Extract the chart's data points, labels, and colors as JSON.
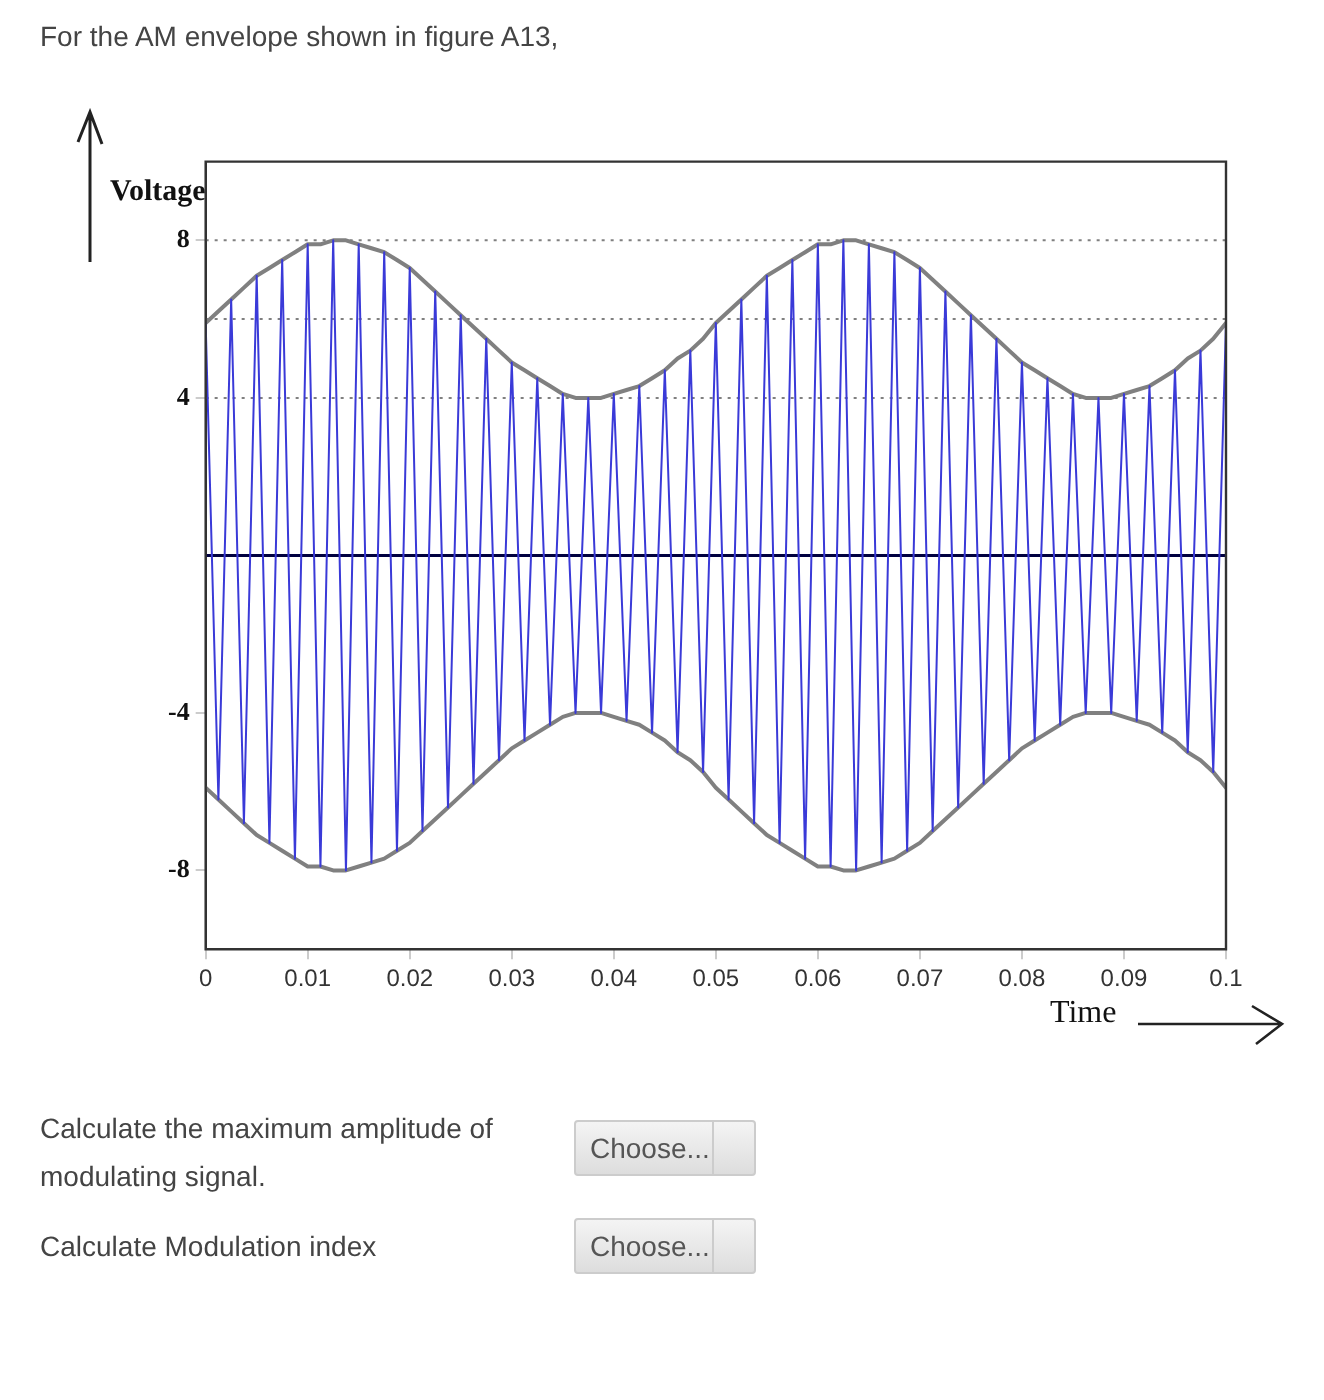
{
  "chart_data": {
    "type": "line",
    "xlabel": "Time",
    "ylabel": "Voltage",
    "marker": "none",
    "line_style": "solid",
    "annotations": [
      "For the AM envelope shown in figure A13,",
      "Calculate the maximum amplitude of modulating signal.",
      "Calculate Modulation index",
      "Choose...",
      "Choose..."
    ],
    "xlim": [
      0,
      0.1
    ],
    "xticks": [
      0,
      0.01,
      0.02,
      0.03,
      0.04,
      0.05,
      0.06,
      0.07,
      0.08,
      0.09,
      0.1
    ],
    "ylim": [
      -10,
      10
    ],
    "yticks": [
      8,
      4,
      -4,
      -8
    ],
    "ref_lines": [
      {
        "axis": "y",
        "value": 8,
        "color": "#808080",
        "line_style": "dotted"
      },
      {
        "axis": "y",
        "value": 6,
        "color": "#808080",
        "line_style": "dotted"
      },
      {
        "axis": "y",
        "value": 4,
        "color": "#808080",
        "line_style": "dotted"
      },
      {
        "axis": "y",
        "value": 0,
        "color": "#000040",
        "line_style": "solid"
      }
    ],
    "x": [
      0,
      0.00125,
      0.0025,
      0.00375,
      0.005,
      0.00625,
      0.0075,
      0.00875,
      0.01,
      0.01125,
      0.0125,
      0.01375,
      0.015,
      0.01625,
      0.0175,
      0.01875,
      0.02,
      0.02125,
      0.0225,
      0.02375,
      0.025,
      0.02625,
      0.0275,
      0.02875,
      0.03,
      0.03125,
      0.0325,
      0.03375,
      0.035,
      0.03625,
      0.0375,
      0.03875,
      0.04,
      0.04125,
      0.0425,
      0.04375,
      0.045,
      0.04625,
      0.0475,
      0.04875,
      0.05,
      0.05125,
      0.0525,
      0.05375,
      0.055,
      0.05625,
      0.0575,
      0.05875,
      0.06,
      0.06125,
      0.0625,
      0.06375,
      0.065,
      0.06625,
      0.0675,
      0.06875,
      0.07,
      0.07125,
      0.0725,
      0.07375,
      0.075,
      0.07625,
      0.0775,
      0.07875,
      0.08,
      0.08125,
      0.0825,
      0.08375,
      0.085,
      0.08625,
      0.0875,
      0.08875,
      0.09,
      0.09125,
      0.0925,
      0.09375,
      0.095,
      0.09625,
      0.0975,
      0.09875,
      0.1
    ],
    "series": [
      {
        "color": "#3a3ad8",
        "values": [
          5.9,
          -6.2,
          6.5,
          -6.8,
          7.1,
          -7.3,
          7.5,
          -7.7,
          7.9,
          -7.9,
          8.0,
          -8.0,
          7.9,
          -7.8,
          7.7,
          -7.5,
          7.3,
          -7.0,
          6.7,
          -6.4,
          6.1,
          -5.8,
          5.5,
          -5.2,
          4.9,
          -4.7,
          4.5,
          -4.3,
          4.1,
          -4.0,
          4.0,
          -4.0,
          4.1,
          -4.2,
          4.3,
          -4.5,
          4.7,
          -5.0,
          5.2,
          -5.5,
          5.9,
          -6.2,
          6.5,
          -6.8,
          7.1,
          -7.3,
          7.5,
          -7.7,
          7.9,
          -7.9,
          8.0,
          -8.0,
          7.9,
          -7.8,
          7.7,
          -7.5,
          7.3,
          -7.0,
          6.7,
          -6.4,
          6.1,
          -5.8,
          5.5,
          -5.2,
          4.9,
          -4.7,
          4.5,
          -4.3,
          4.1,
          -4.0,
          4.0,
          -4.0,
          4.1,
          -4.2,
          4.3,
          -4.5,
          4.7,
          -5.0,
          5.2,
          -5.5,
          5.9
        ]
      },
      {
        "color": "#808080",
        "values": [
          5.9,
          6.2,
          6.5,
          6.8,
          7.1,
          7.3,
          7.5,
          7.7,
          7.9,
          7.9,
          8.0,
          8.0,
          7.9,
          7.8,
          7.7,
          7.5,
          7.3,
          7.0,
          6.7,
          6.4,
          6.1,
          5.8,
          5.5,
          5.2,
          4.9,
          4.7,
          4.5,
          4.3,
          4.1,
          4.0,
          4.0,
          4.0,
          4.1,
          4.2,
          4.3,
          4.5,
          4.7,
          5.0,
          5.2,
          5.5,
          5.9,
          6.2,
          6.5,
          6.8,
          7.1,
          7.3,
          7.5,
          7.7,
          7.9,
          7.9,
          8.0,
          8.0,
          7.9,
          7.8,
          7.7,
          7.5,
          7.3,
          7.0,
          6.7,
          6.4,
          6.1,
          5.8,
          5.5,
          5.2,
          4.9,
          4.7,
          4.5,
          4.3,
          4.1,
          4.0,
          4.0,
          4.0,
          4.1,
          4.2,
          4.3,
          4.5,
          4.7,
          5.0,
          5.2,
          5.5,
          5.9
        ]
      },
      {
        "color": "#808080",
        "values": [
          -5.9,
          -6.2,
          -6.5,
          -6.8,
          -7.1,
          -7.3,
          -7.5,
          -7.7,
          -7.9,
          -7.9,
          -8.0,
          -8.0,
          -7.9,
          -7.8,
          -7.7,
          -7.5,
          -7.3,
          -7.0,
          -6.7,
          -6.4,
          -6.1,
          -5.8,
          -5.5,
          -5.2,
          -4.9,
          -4.7,
          -4.5,
          -4.3,
          -4.1,
          -4.0,
          -4.0,
          -4.0,
          -4.1,
          -4.2,
          -4.3,
          -4.5,
          -4.7,
          -5.0,
          -5.2,
          -5.5,
          -5.9,
          -6.2,
          -6.5,
          -6.8,
          -7.1,
          -7.3,
          -7.5,
          -7.7,
          -7.9,
          -7.9,
          -8.0,
          -8.0,
          -7.9,
          -7.8,
          -7.7,
          -7.5,
          -7.3,
          -7.0,
          -6.7,
          -6.4,
          -6.1,
          -5.8,
          -5.5,
          -5.2,
          -4.9,
          -4.7,
          -4.5,
          -4.3,
          -4.1,
          -4.0,
          -4.0,
          -4.0,
          -4.1,
          -4.2,
          -4.3,
          -4.5,
          -4.7,
          -5.0,
          -5.2,
          -5.5,
          -5.9
        ]
      }
    ]
  }
}
